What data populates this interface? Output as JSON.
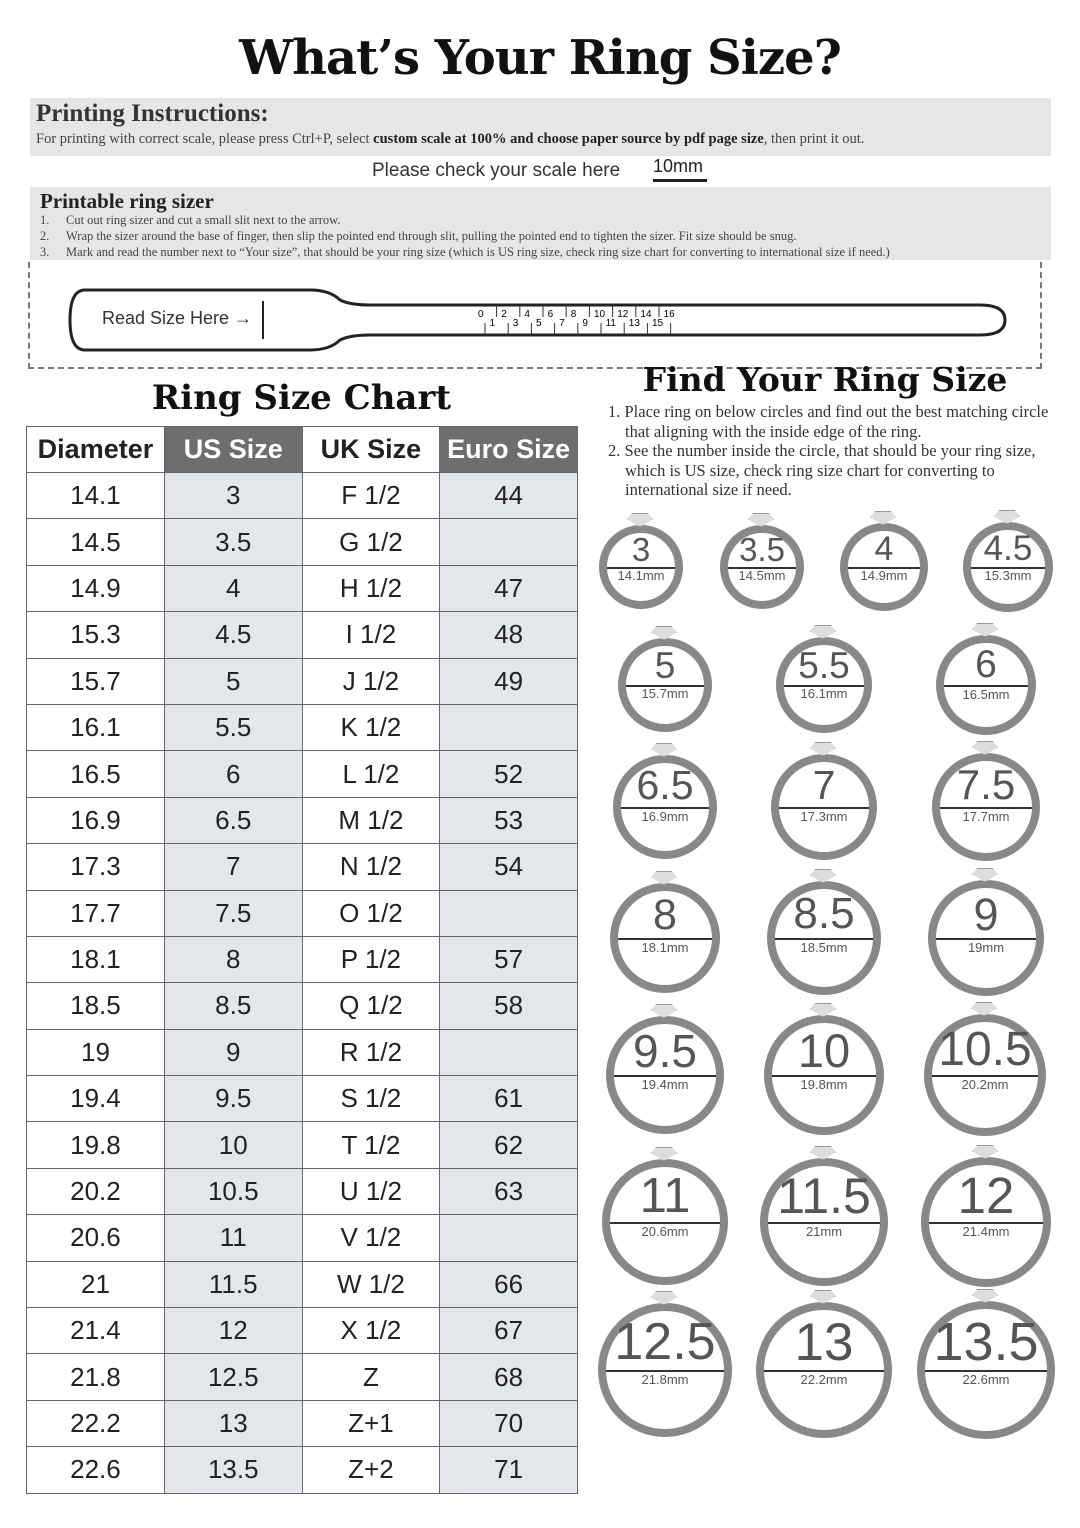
{
  "title": "What’s Your Ring Size?",
  "printing": {
    "heading": "Printing Instructions:",
    "text_before": "For printing with correct scale, please press Ctrl+P, select ",
    "text_bold": "custom scale at 100% and choose paper source by pdf page size",
    "text_after": ", then print it out."
  },
  "scale": {
    "label": "Please check your scale here",
    "value": "10mm"
  },
  "sizer": {
    "heading": "Printable ring sizer",
    "steps": [
      {
        "n": "1.",
        "text": "Cut out ring sizer and cut a small slit next to the arrow."
      },
      {
        "n": "2.",
        "text": "Wrap the sizer around the base of finger, then slip the pointed end through slit, pulling the pointed end to tighten the sizer. Fit size should be snug."
      },
      {
        "n": "3.",
        "text": "Mark and read the number next to “Your size”, that should be your ring size (which is US ring size, check ring size chart for converting to international size if need.)"
      }
    ],
    "strip_label": "Read Size Here →",
    "ticks": [
      "0",
      "1",
      "2",
      "3",
      "4",
      "5",
      "6",
      "7",
      "8",
      "9",
      "10",
      "11",
      "12",
      "13",
      "14",
      "15",
      "16"
    ]
  },
  "chart": {
    "title": "Ring Size Chart",
    "headers": [
      "Diameter",
      "US Size",
      "UK Size",
      "Euro Size"
    ],
    "rows": [
      [
        "14.1",
        "3",
        "F 1/2",
        "44"
      ],
      [
        "14.5",
        "3.5",
        "G 1/2",
        ""
      ],
      [
        "14.9",
        "4",
        "H 1/2",
        "47"
      ],
      [
        "15.3",
        "4.5",
        "I 1/2",
        "48"
      ],
      [
        "15.7",
        "5",
        "J 1/2",
        "49"
      ],
      [
        "16.1",
        "5.5",
        "K 1/2",
        ""
      ],
      [
        "16.5",
        "6",
        "L 1/2",
        "52"
      ],
      [
        "16.9",
        "6.5",
        "M 1/2",
        "53"
      ],
      [
        "17.3",
        "7",
        "N 1/2",
        "54"
      ],
      [
        "17.7",
        "7.5",
        "O 1/2",
        ""
      ],
      [
        "18.1",
        "8",
        "P 1/2",
        "57"
      ],
      [
        "18.5",
        "8.5",
        "Q 1/2",
        "58"
      ],
      [
        "19",
        "9",
        "R 1/2",
        ""
      ],
      [
        "19.4",
        "9.5",
        "S 1/2",
        "61"
      ],
      [
        "19.8",
        "10",
        "T 1/2",
        "62"
      ],
      [
        "20.2",
        "10.5",
        "U 1/2",
        "63"
      ],
      [
        "20.6",
        "11",
        "V 1/2",
        ""
      ],
      [
        "21",
        "11.5",
        "W 1/2",
        "66"
      ],
      [
        "21.4",
        "12",
        "X 1/2",
        "67"
      ],
      [
        "21.8",
        "12.5",
        "Z",
        "68"
      ],
      [
        "22.2",
        "13",
        "Z+1",
        "70"
      ],
      [
        "22.6",
        "13.5",
        "Z+2",
        "71"
      ]
    ]
  },
  "find": {
    "title": "Find Your Ring Size",
    "steps": [
      "1. Place ring on below circles and find out the best matching circle that aligning with the inside edge of the ring.",
      "2. See the number inside the circle, that should be your ring size, which is US size, check ring size chart for converting to international size if need."
    ],
    "rings": [
      {
        "size": "3",
        "mm": "14.1mm"
      },
      {
        "size": "3.5",
        "mm": "14.5mm"
      },
      {
        "size": "4",
        "mm": "14.9mm"
      },
      {
        "size": "4.5",
        "mm": "15.3mm"
      },
      {
        "size": "5",
        "mm": "15.7mm"
      },
      {
        "size": "5.5",
        "mm": "16.1mm"
      },
      {
        "size": "6",
        "mm": "16.5mm"
      },
      {
        "size": "6.5",
        "mm": "16.9mm"
      },
      {
        "size": "7",
        "mm": "17.3mm"
      },
      {
        "size": "7.5",
        "mm": "17.7mm"
      },
      {
        "size": "8",
        "mm": "18.1mm"
      },
      {
        "size": "8.5",
        "mm": "18.5mm"
      },
      {
        "size": "9",
        "mm": "19mm"
      },
      {
        "size": "9.5",
        "mm": "19.4mm"
      },
      {
        "size": "10",
        "mm": "19.8mm"
      },
      {
        "size": "10.5",
        "mm": "20.2mm"
      },
      {
        "size": "11",
        "mm": "20.6mm"
      },
      {
        "size": "11.5",
        "mm": "21mm"
      },
      {
        "size": "12",
        "mm": "21.4mm"
      },
      {
        "size": "12.5",
        "mm": "21.8mm"
      },
      {
        "size": "13",
        "mm": "22.2mm"
      },
      {
        "size": "13.5",
        "mm": "22.6mm"
      }
    ]
  }
}
